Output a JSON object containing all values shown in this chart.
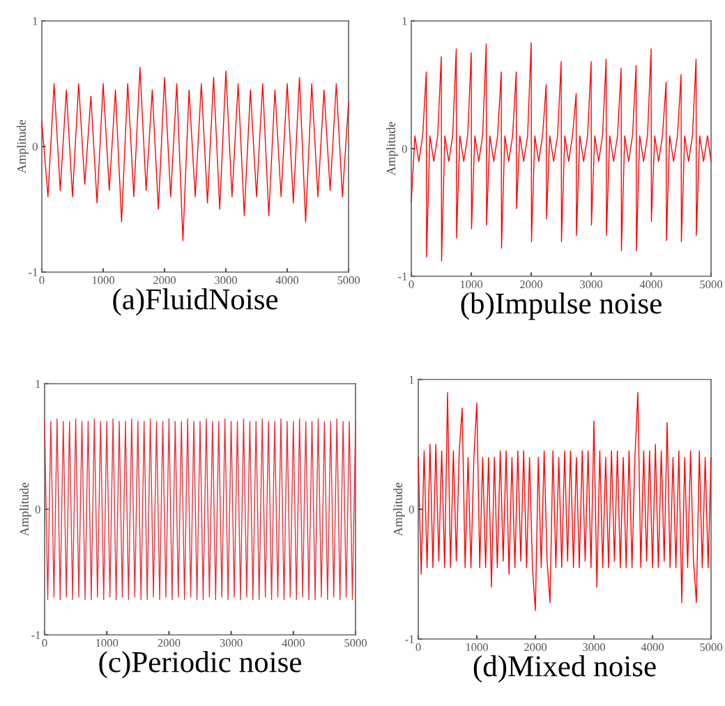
{
  "chart_data": [
    {
      "type": "line",
      "title": "(a)FluidNoise",
      "ylabel": "Amplitude",
      "xlim": [
        0,
        5000
      ],
      "ylim": [
        -1,
        1
      ],
      "xticks": [
        0,
        1000,
        2000,
        3000,
        4000,
        5000
      ],
      "yticks": [
        -1,
        0,
        1
      ],
      "x": [
        0,
        100,
        200,
        300,
        400,
        500,
        600,
        700,
        800,
        900,
        1000,
        1100,
        1200,
        1300,
        1400,
        1500,
        1600,
        1700,
        1800,
        1900,
        2000,
        2100,
        2200,
        2300,
        2400,
        2500,
        2600,
        2700,
        2800,
        2900,
        3000,
        3100,
        3200,
        3300,
        3400,
        3500,
        3600,
        3700,
        3800,
        3900,
        4000,
        4100,
        4200,
        4300,
        4400,
        4500,
        4600,
        4700,
        4800,
        4900,
        5000
      ],
      "series": [
        {
          "color": "#ff0000",
          "values": [
            0.2,
            -0.4,
            0.5,
            -0.35,
            0.45,
            -0.4,
            0.5,
            -0.3,
            0.4,
            -0.45,
            0.5,
            -0.35,
            0.45,
            -0.6,
            0.5,
            -0.4,
            0.63,
            -0.35,
            0.45,
            -0.5,
            0.55,
            -0.4,
            0.5,
            -0.75,
            0.45,
            -0.4,
            0.5,
            -0.45,
            0.55,
            -0.5,
            0.6,
            -0.4,
            0.5,
            -0.55,
            0.45,
            -0.4,
            0.5,
            -0.55,
            0.45,
            -0.4,
            0.5,
            -0.45,
            0.55,
            -0.6,
            0.5,
            -0.4,
            0.45,
            -0.35,
            0.5,
            -0.4,
            0.35
          ]
        }
      ]
    },
    {
      "type": "line",
      "title": "(b)Impulse noise",
      "ylabel": "Amplitude",
      "xlim": [
        0,
        5000
      ],
      "ylim": [
        -1,
        1
      ],
      "xticks": [
        0,
        1000,
        2000,
        3000,
        4000,
        5000
      ],
      "yticks": [
        -1,
        0,
        1
      ],
      "x": [
        0,
        60,
        125,
        190,
        250,
        255,
        310,
        375,
        440,
        500,
        505,
        560,
        625,
        690,
        750,
        755,
        810,
        875,
        940,
        1000,
        1005,
        1060,
        1125,
        1190,
        1250,
        1255,
        1310,
        1375,
        1440,
        1500,
        1505,
        1560,
        1625,
        1690,
        1750,
        1755,
        1810,
        1875,
        1940,
        2000,
        2005,
        2060,
        2125,
        2190,
        2250,
        2255,
        2310,
        2375,
        2440,
        2500,
        2505,
        2560,
        2625,
        2690,
        2750,
        2755,
        2810,
        2875,
        2940,
        3000,
        3005,
        3060,
        3125,
        3190,
        3250,
        3255,
        3310,
        3375,
        3440,
        3500,
        3505,
        3560,
        3625,
        3690,
        3750,
        3755,
        3810,
        3875,
        3940,
        4000,
        4005,
        4060,
        4125,
        4190,
        4250,
        4255,
        4310,
        4375,
        4440,
        4500,
        4505,
        4560,
        4625,
        4690,
        4750,
        4755,
        4810,
        4875,
        4940,
        5000
      ],
      "series": [
        {
          "color": "#ff0000",
          "values": [
            -0.42,
            0.1,
            -0.1,
            0.1,
            0.6,
            -0.85,
            0.1,
            -0.1,
            0.1,
            0.72,
            -0.88,
            0.1,
            -0.1,
            0.1,
            0.78,
            -0.7,
            0.1,
            -0.1,
            0.1,
            0.75,
            -0.63,
            0.1,
            -0.1,
            0.1,
            0.82,
            -0.6,
            0.1,
            -0.1,
            0.1,
            0.6,
            -0.78,
            0.1,
            -0.1,
            0.1,
            0.6,
            -0.47,
            0.1,
            -0.1,
            0.1,
            0.83,
            -0.73,
            0.1,
            -0.1,
            0.1,
            0.5,
            -0.55,
            0.1,
            -0.1,
            0.1,
            0.68,
            -0.73,
            0.1,
            -0.1,
            0.1,
            0.43,
            -0.68,
            0.1,
            -0.1,
            0.1,
            0.68,
            -0.6,
            0.1,
            -0.1,
            0.1,
            0.7,
            -0.68,
            0.1,
            -0.1,
            0.1,
            0.63,
            -0.8,
            0.1,
            -0.1,
            0.1,
            0.65,
            -0.8,
            0.1,
            -0.1,
            0.1,
            0.78,
            -0.57,
            0.1,
            -0.1,
            0.1,
            0.52,
            -0.72,
            0.1,
            -0.1,
            0.1,
            0.58,
            -0.73,
            0.1,
            -0.1,
            0.1,
            0.7,
            -0.68,
            0.1,
            -0.1,
            0.1,
            -0.1
          ]
        }
      ]
    },
    {
      "type": "line",
      "title": "(c)Periodic noise",
      "ylabel": "Amplitude",
      "xlim": [
        0,
        5000
      ],
      "ylim": [
        -1,
        1
      ],
      "xticks": [
        0,
        1000,
        2000,
        3000,
        4000,
        5000
      ],
      "yticks": [
        -1,
        0,
        1
      ],
      "x": [
        0,
        50,
        100,
        150,
        200,
        250,
        300,
        350,
        400,
        450,
        500,
        550,
        600,
        650,
        700,
        750,
        800,
        850,
        900,
        950,
        1000,
        1050,
        1100,
        1150,
        1200,
        1250,
        1300,
        1350,
        1400,
        1450,
        1500,
        1550,
        1600,
        1650,
        1700,
        1750,
        1800,
        1850,
        1900,
        1950,
        2000,
        2050,
        2100,
        2150,
        2200,
        2250,
        2300,
        2350,
        2400,
        2450,
        2500,
        2550,
        2600,
        2650,
        2700,
        2750,
        2800,
        2850,
        2900,
        2950,
        3000,
        3050,
        3100,
        3150,
        3200,
        3250,
        3300,
        3350,
        3400,
        3450,
        3500,
        3550,
        3600,
        3650,
        3700,
        3750,
        3800,
        3850,
        3900,
        3950,
        4000,
        4050,
        4100,
        4150,
        4200,
        4250,
        4300,
        4350,
        4400,
        4450,
        4500,
        4550,
        4600,
        4650,
        4700,
        4750,
        4800,
        4850,
        4900,
        4950,
        5000
      ],
      "series": [
        {
          "color": "#e8303a",
          "values": [
            0.7,
            -0.72,
            0.7,
            -0.7,
            0.72,
            -0.72,
            0.7,
            -0.7,
            0.7,
            -0.72,
            0.72,
            -0.7,
            0.7,
            -0.72,
            0.7,
            -0.72,
            0.72,
            -0.7,
            0.7,
            -0.72,
            0.7,
            -0.7,
            0.72,
            -0.72,
            0.7,
            -0.7,
            0.7,
            -0.72,
            0.72,
            -0.7,
            0.7,
            -0.72,
            0.7,
            -0.72,
            0.72,
            -0.7,
            0.7,
            -0.72,
            0.7,
            -0.7,
            0.72,
            -0.72,
            0.7,
            -0.7,
            0.7,
            -0.72,
            0.72,
            -0.7,
            0.7,
            -0.72,
            0.7,
            -0.72,
            0.72,
            -0.7,
            0.7,
            -0.72,
            0.7,
            -0.7,
            0.72,
            -0.72,
            0.7,
            -0.7,
            0.7,
            -0.72,
            0.72,
            -0.7,
            0.7,
            -0.72,
            0.7,
            -0.72,
            0.72,
            -0.7,
            0.7,
            -0.72,
            0.7,
            -0.7,
            0.72,
            -0.72,
            0.7,
            -0.7,
            0.7,
            -0.72,
            0.72,
            -0.7,
            0.7,
            -0.72,
            0.7,
            -0.72,
            0.72,
            -0.7,
            0.7,
            -0.72,
            0.7,
            -0.7,
            0.72,
            -0.72,
            0.7,
            -0.7,
            0.7,
            -0.72,
            0.7
          ]
        }
      ]
    },
    {
      "type": "line",
      "title": "(d)Mixed noise",
      "ylabel": "Amplitude",
      "xlim": [
        0,
        5000
      ],
      "ylim": [
        -1,
        1
      ],
      "xticks": [
        0,
        1000,
        2000,
        3000,
        4000,
        5000
      ],
      "yticks": [
        -1,
        0,
        1
      ],
      "x": [
        0,
        50,
        100,
        150,
        200,
        250,
        300,
        350,
        400,
        450,
        500,
        550,
        600,
        650,
        700,
        750,
        800,
        850,
        900,
        950,
        1000,
        1050,
        1100,
        1150,
        1200,
        1250,
        1300,
        1350,
        1400,
        1450,
        1500,
        1550,
        1600,
        1650,
        1700,
        1750,
        1800,
        1850,
        1900,
        1950,
        2000,
        2050,
        2100,
        2150,
        2200,
        2250,
        2300,
        2350,
        2400,
        2450,
        2500,
        2550,
        2600,
        2650,
        2700,
        2750,
        2800,
        2850,
        2900,
        2950,
        3000,
        3050,
        3100,
        3150,
        3200,
        3250,
        3300,
        3350,
        3400,
        3450,
        3500,
        3550,
        3600,
        3650,
        3700,
        3750,
        3800,
        3850,
        3900,
        3950,
        4000,
        4050,
        4100,
        4150,
        4200,
        4250,
        4300,
        4350,
        4400,
        4450,
        4500,
        4550,
        4600,
        4650,
        4700,
        4750,
        4800,
        4850,
        4900,
        4950,
        5000
      ],
      "series": [
        {
          "color": "#ff0000",
          "values": [
            0.4,
            -0.5,
            0.45,
            -0.45,
            0.5,
            -0.45,
            0.5,
            -0.4,
            0.45,
            -0.45,
            0.9,
            -0.45,
            0.45,
            -0.4,
            0.45,
            0.78,
            -0.45,
            0.4,
            -0.45,
            0.4,
            0.82,
            -0.45,
            0.4,
            -0.45,
            0.4,
            -0.6,
            0.4,
            -0.45,
            0.45,
            -0.4,
            0.45,
            -0.5,
            0.4,
            -0.45,
            0.45,
            -0.4,
            0.45,
            -0.45,
            0.4,
            -0.45,
            -0.78,
            0.4,
            -0.45,
            0.45,
            -0.4,
            -0.72,
            0.45,
            -0.45,
            0.4,
            -0.45,
            0.45,
            -0.4,
            0.45,
            -0.45,
            0.4,
            -0.45,
            0.45,
            -0.4,
            0.45,
            -0.45,
            0.68,
            -0.6,
            0.45,
            -0.45,
            0.4,
            -0.45,
            0.45,
            -0.4,
            0.45,
            -0.45,
            0.4,
            -0.45,
            0.45,
            -0.45,
            0.4,
            0.9,
            -0.45,
            0.45,
            -0.4,
            0.45,
            -0.45,
            0.5,
            -0.45,
            0.45,
            -0.4,
            0.67,
            -0.45,
            0.4,
            -0.45,
            0.45,
            -0.72,
            0.4,
            -0.45,
            0.45,
            -0.4,
            -0.72,
            0.45,
            -0.45,
            0.4,
            -0.45,
            0.4
          ]
        }
      ]
    }
  ]
}
